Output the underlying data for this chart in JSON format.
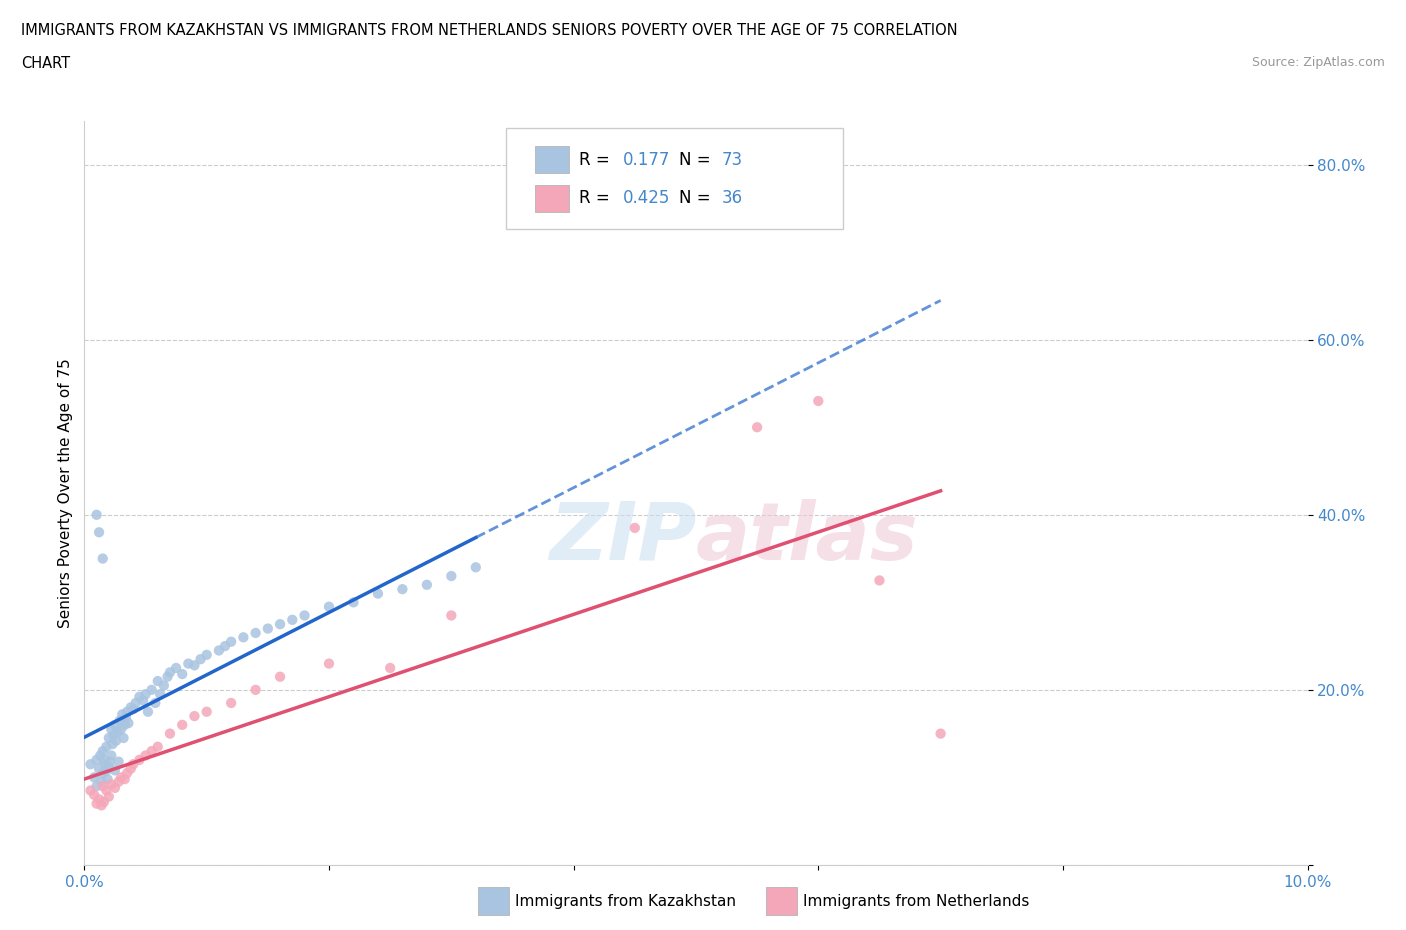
{
  "title_line1": "IMMIGRANTS FROM KAZAKHSTAN VS IMMIGRANTS FROM NETHERLANDS SENIORS POVERTY OVER THE AGE OF 75 CORRELATION",
  "title_line2": "CHART",
  "source_text": "Source: ZipAtlas.com",
  "ylabel": "Seniors Poverty Over the Age of 75",
  "xlim": [
    0.0,
    0.1
  ],
  "ylim": [
    0.0,
    0.85
  ],
  "x_ticks": [
    0.0,
    0.02,
    0.04,
    0.06,
    0.08,
    0.1
  ],
  "x_tick_labels": [
    "0.0%",
    "",
    "",
    "",
    "",
    "10.0%"
  ],
  "y_ticks": [
    0.0,
    0.2,
    0.4,
    0.6,
    0.8
  ],
  "y_tick_labels": [
    "",
    "20.0%",
    "40.0%",
    "60.0%",
    "80.0%"
  ],
  "legend_R1": "0.177",
  "legend_N1": "73",
  "legend_R2": "0.425",
  "legend_N2": "36",
  "color_kaz": "#a8c4e0",
  "color_ned": "#f4a7b9",
  "trendline_kaz_color": "#2266cc",
  "trendline_ned_color": "#e05070",
  "kaz_x": [
    0.0005,
    0.0008,
    0.001,
    0.001,
    0.0012,
    0.0013,
    0.0014,
    0.0015,
    0.0015,
    0.0016,
    0.0017,
    0.0018,
    0.0018,
    0.0019,
    0.002,
    0.002,
    0.0021,
    0.0022,
    0.0022,
    0.0023,
    0.0024,
    0.0025,
    0.0025,
    0.0026,
    0.0027,
    0.0028,
    0.0029,
    0.003,
    0.0031,
    0.0032,
    0.0033,
    0.0034,
    0.0035,
    0.0036,
    0.0038,
    0.004,
    0.0042,
    0.0045,
    0.0048,
    0.005,
    0.0052,
    0.0055,
    0.0058,
    0.006,
    0.0062,
    0.0065,
    0.0068,
    0.007,
    0.0075,
    0.008,
    0.0085,
    0.009,
    0.0095,
    0.01,
    0.011,
    0.0115,
    0.012,
    0.013,
    0.014,
    0.015,
    0.016,
    0.017,
    0.018,
    0.02,
    0.022,
    0.024,
    0.026,
    0.028,
    0.03,
    0.032,
    0.001,
    0.0012,
    0.0015
  ],
  "kaz_y": [
    0.115,
    0.1,
    0.12,
    0.09,
    0.11,
    0.125,
    0.095,
    0.13,
    0.105,
    0.12,
    0.115,
    0.108,
    0.135,
    0.098,
    0.145,
    0.112,
    0.118,
    0.155,
    0.125,
    0.138,
    0.148,
    0.16,
    0.108,
    0.142,
    0.152,
    0.118,
    0.165,
    0.155,
    0.172,
    0.145,
    0.16,
    0.168,
    0.175,
    0.162,
    0.18,
    0.178,
    0.185,
    0.192,
    0.188,
    0.195,
    0.175,
    0.2,
    0.185,
    0.21,
    0.195,
    0.205,
    0.215,
    0.22,
    0.225,
    0.218,
    0.23,
    0.228,
    0.235,
    0.24,
    0.245,
    0.25,
    0.255,
    0.26,
    0.265,
    0.27,
    0.275,
    0.28,
    0.285,
    0.295,
    0.3,
    0.31,
    0.315,
    0.32,
    0.33,
    0.34,
    0.4,
    0.38,
    0.35
  ],
  "ned_x": [
    0.0005,
    0.0008,
    0.001,
    0.0012,
    0.0014,
    0.0015,
    0.0016,
    0.0018,
    0.002,
    0.0022,
    0.0025,
    0.0028,
    0.003,
    0.0033,
    0.0035,
    0.0038,
    0.004,
    0.0045,
    0.005,
    0.0055,
    0.006,
    0.007,
    0.008,
    0.009,
    0.01,
    0.012,
    0.014,
    0.016,
    0.02,
    0.025,
    0.03,
    0.045,
    0.055,
    0.06,
    0.065,
    0.07
  ],
  "ned_y": [
    0.085,
    0.08,
    0.07,
    0.075,
    0.068,
    0.09,
    0.072,
    0.085,
    0.078,
    0.092,
    0.088,
    0.095,
    0.1,
    0.098,
    0.105,
    0.11,
    0.115,
    0.12,
    0.125,
    0.13,
    0.135,
    0.15,
    0.16,
    0.17,
    0.175,
    0.185,
    0.2,
    0.215,
    0.23,
    0.225,
    0.285,
    0.385,
    0.5,
    0.53,
    0.325,
    0.15
  ]
}
